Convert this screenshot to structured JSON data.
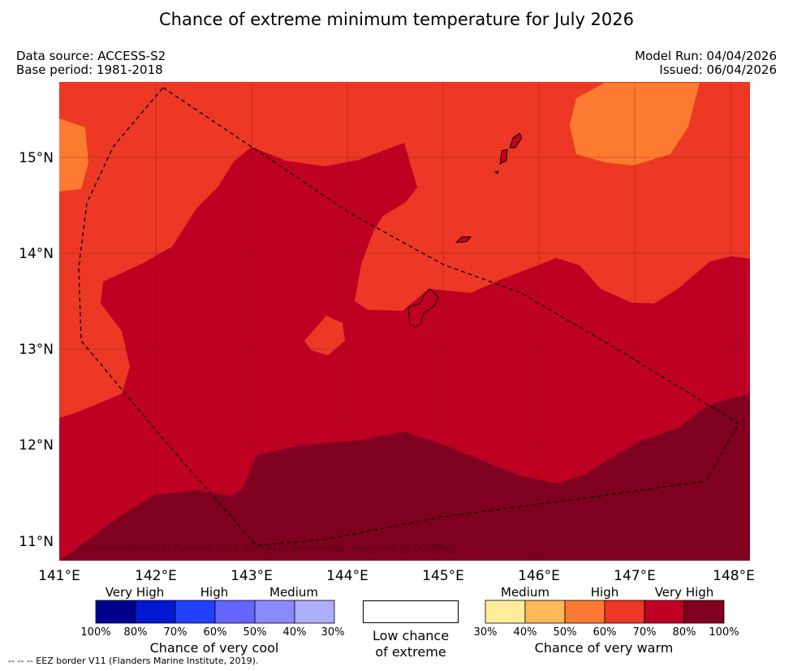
{
  "title": "Chance of extreme minimum temperature for July 2026",
  "data_source": "Data source: ACCESS-S2",
  "base_period": "Base period: 1981-2018",
  "model_run": "Model Run: 04/04/2026",
  "issued": "Issued: 06/04/2026",
  "copyright": "© Commonwealth of Australia 2026, Bureau of Meteorology, supported by COSPPac",
  "lat_labels": [
    "15°N",
    "14°N",
    "13°N",
    "12°N",
    "11°N"
  ],
  "lon_labels": [
    "141°E",
    "142°E",
    "143°E",
    "144°E",
    "145°E",
    "146°E",
    "147°E",
    "148°E"
  ],
  "cool_scale": {
    "title": "Chance of very cool",
    "categories": [
      "Very High",
      "High",
      "Medium"
    ],
    "ticks": [
      "100%",
      "80%",
      "70%",
      "60%",
      "50%",
      "40%",
      "30%"
    ],
    "colors": [
      "#00008f",
      "#0018cf",
      "#2140ff",
      "#6464ff",
      "#8a8aff",
      "#aeaeff"
    ]
  },
  "low_chance": {
    "line1": "Low chance",
    "line2": "of extreme"
  },
  "warm_scale": {
    "title": "Chance of very warm",
    "categories": [
      "Medium",
      "High",
      "Very High"
    ],
    "ticks": [
      "30%",
      "40%",
      "50%",
      "60%",
      "70%",
      "80%",
      "100%"
    ],
    "colors": [
      "#ffec9a",
      "#feb957",
      "#fd7b30",
      "#ec3824",
      "#be0022",
      "#800020"
    ]
  },
  "eez_note": "--  --  -- EEZ border V11 (Flanders Marine Institute, 2019)."
}
